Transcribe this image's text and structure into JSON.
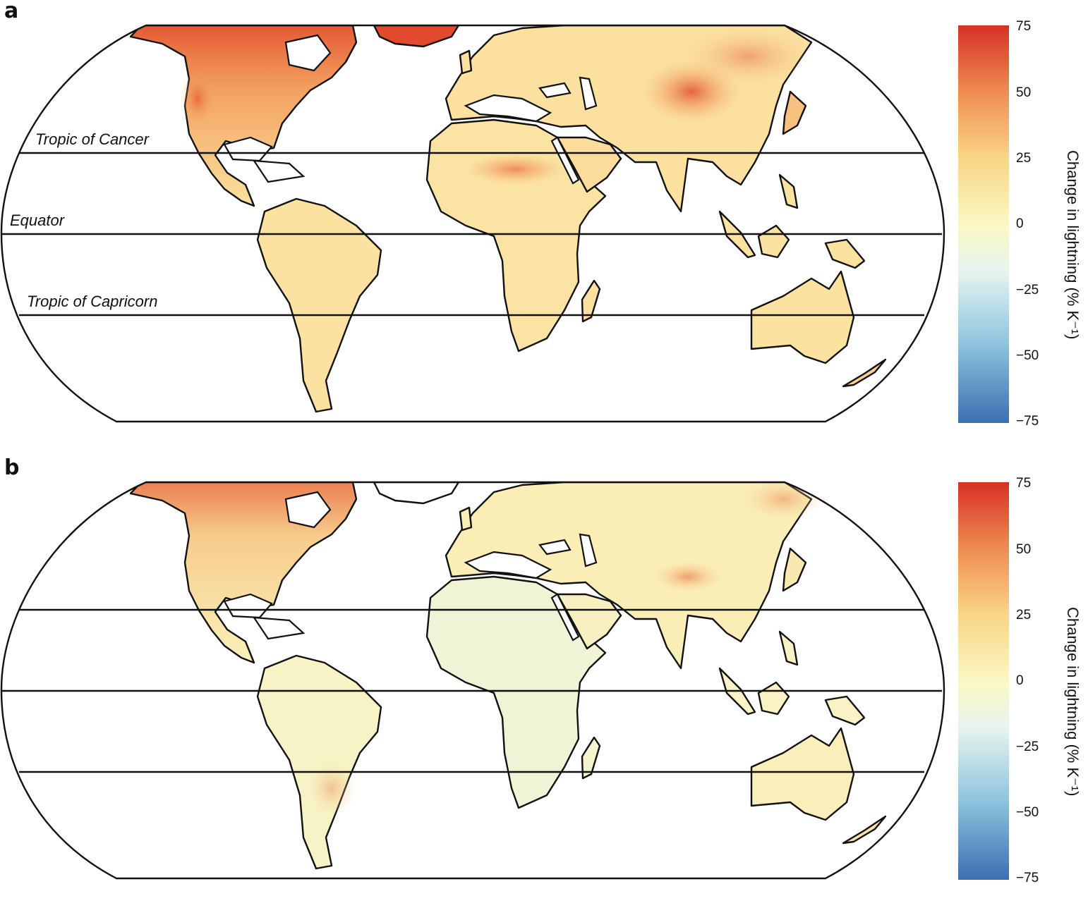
{
  "panels": [
    {
      "letter": "a",
      "lines": [
        {
          "label": "Tropic of Cancer",
          "lat": 23.4
        },
        {
          "label": "Equator",
          "lat": 0
        },
        {
          "label": "Tropic of Capricorn",
          "lat": -23.4
        }
      ]
    },
    {
      "letter": "b",
      "lines": [
        {
          "label": "",
          "lat": 23.4
        },
        {
          "label": "",
          "lat": 0
        },
        {
          "label": "",
          "lat": -23.4
        }
      ]
    }
  ],
  "colorbar": {
    "label": "Change in lightning (% K⁻¹)",
    "ticks": [
      "75",
      "50",
      "25",
      "0",
      "−25",
      "−50",
      "−75"
    ],
    "min": -75,
    "max": 75,
    "colors": [
      "#3b6fb0",
      "#8ec4de",
      "#e6f4ef",
      "#fbf8c4",
      "#f9d585",
      "#f08d52",
      "#d73027"
    ]
  },
  "land_colors": {
    "panel_a": {
      "base": "#fbe7a6",
      "warm": "#f6b46e",
      "hot": "#e8603a"
    },
    "panel_b": {
      "base": "#fbf2bc",
      "warm": "#f8d896",
      "hot": "#f0a064",
      "cool": "#eaf4e6"
    }
  }
}
